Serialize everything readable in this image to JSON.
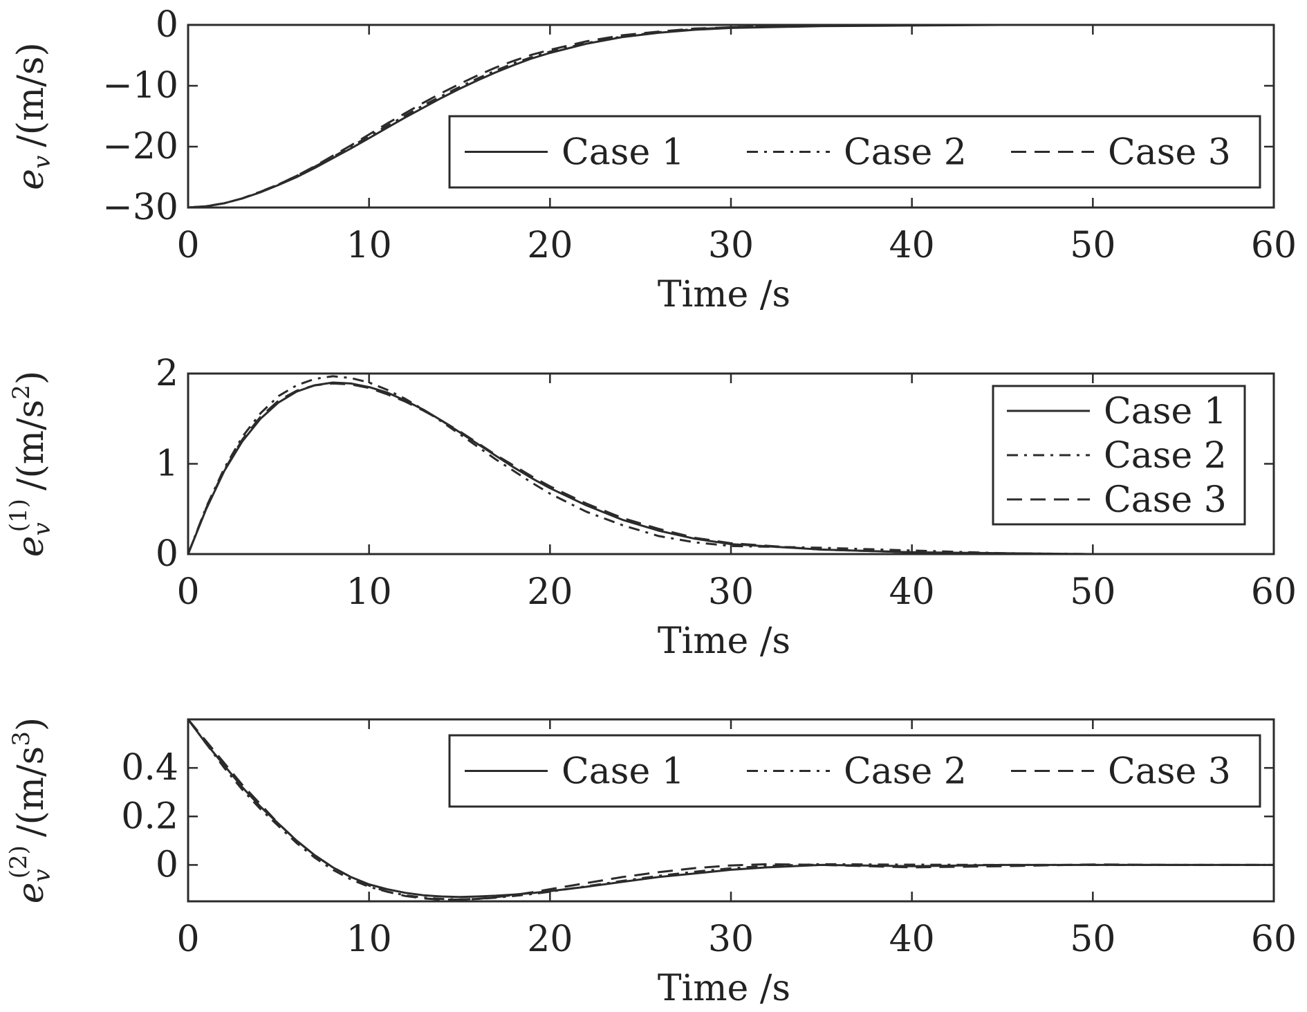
{
  "chart_data": [
    {
      "type": "line",
      "ylabel": {
        "symbol": "e",
        "sub": "v",
        "sup": "",
        "unit": "/(m/s)",
        "unit_sup": ""
      },
      "xlabel": "Time /s",
      "xlim": [
        0,
        60
      ],
      "ylim": [
        -30,
        0
      ],
      "xticks": [
        0,
        10,
        20,
        30,
        40,
        50,
        60
      ],
      "yticks": [
        0,
        -10,
        -20,
        -30
      ],
      "ytick_labels": [
        "0",
        "−10",
        "−20",
        "−30"
      ],
      "legend": {
        "placement": "inside-right-middle",
        "orientation": "horizontal"
      },
      "series": [
        {
          "name": "Case 1",
          "dash": "solid",
          "x": [
            0,
            1,
            2,
            3,
            4,
            5,
            6,
            7,
            8,
            9,
            10,
            11,
            12,
            13,
            14,
            15,
            16,
            17,
            18,
            19,
            20,
            22,
            24,
            26,
            28,
            30,
            35,
            40,
            45,
            50,
            55,
            60
          ],
          "y": [
            -30,
            -29.8,
            -29.3,
            -28.5,
            -27.5,
            -26.3,
            -25,
            -23.5,
            -21.9,
            -20.3,
            -18.6,
            -16.9,
            -15.2,
            -13.6,
            -12,
            -10.5,
            -9.1,
            -7.8,
            -6.6,
            -5.5,
            -4.6,
            -3.1,
            -2,
            -1.3,
            -0.8,
            -0.5,
            -0.2,
            -0.1,
            0,
            0,
            0,
            0
          ]
        },
        {
          "name": "Case 2",
          "dash": "dash-dot",
          "x": [
            0,
            1,
            2,
            3,
            4,
            5,
            6,
            7,
            8,
            9,
            10,
            11,
            12,
            13,
            14,
            15,
            16,
            17,
            18,
            19,
            20,
            22,
            24,
            26,
            28,
            30,
            35,
            40,
            45,
            50,
            55,
            60
          ],
          "y": [
            -30,
            -29.8,
            -29.3,
            -28.5,
            -27.4,
            -26.2,
            -24.8,
            -23.3,
            -21.7,
            -20,
            -18.3,
            -16.6,
            -14.9,
            -13.2,
            -11.7,
            -10.2,
            -8.8,
            -7.5,
            -6.3,
            -5.3,
            -4.4,
            -3,
            -1.9,
            -1.2,
            -0.7,
            -0.4,
            -0.1,
            0,
            0,
            0,
            0,
            0
          ]
        },
        {
          "name": "Case 3",
          "dash": "dashed",
          "x": [
            0,
            1,
            2,
            3,
            4,
            5,
            6,
            7,
            8,
            9,
            10,
            11,
            12,
            13,
            14,
            15,
            16,
            17,
            18,
            19,
            20,
            22,
            24,
            26,
            28,
            30,
            35,
            40,
            45,
            50,
            55,
            60
          ],
          "y": [
            -30,
            -29.8,
            -29.3,
            -28.5,
            -27.4,
            -26.2,
            -24.8,
            -23.2,
            -21.5,
            -19.8,
            -18,
            -16.2,
            -14.5,
            -12.8,
            -11.2,
            -9.7,
            -8.3,
            -7,
            -5.9,
            -4.9,
            -4.1,
            -2.7,
            -1.7,
            -1.1,
            -0.6,
            -0.4,
            -0.1,
            0,
            0,
            0,
            0,
            0
          ]
        }
      ]
    },
    {
      "type": "line",
      "ylabel": {
        "symbol": "e",
        "sub": "v",
        "sup": "(1)",
        "unit": "/(m/s",
        "unit_sup": "2"
      },
      "xlabel": "Time /s",
      "xlim": [
        0,
        60
      ],
      "ylim": [
        0,
        2
      ],
      "xticks": [
        0,
        10,
        20,
        30,
        40,
        50,
        60
      ],
      "yticks": [
        0,
        1,
        2
      ],
      "ytick_labels": [
        "0",
        "1",
        "2"
      ],
      "legend": {
        "placement": "top-right",
        "orientation": "vertical"
      },
      "series": [
        {
          "name": "Case 1",
          "dash": "solid",
          "x": [
            0,
            1,
            2,
            3,
            4,
            5,
            6,
            7,
            8,
            9,
            10,
            11,
            12,
            13,
            14,
            15,
            16,
            17,
            18,
            19,
            20,
            22,
            24,
            26,
            28,
            30,
            35,
            40,
            45,
            50,
            55,
            60
          ],
          "y": [
            0,
            0.5,
            0.92,
            1.25,
            1.5,
            1.68,
            1.8,
            1.87,
            1.9,
            1.89,
            1.85,
            1.79,
            1.7,
            1.6,
            1.48,
            1.35,
            1.22,
            1.09,
            0.96,
            0.84,
            0.73,
            0.54,
            0.38,
            0.26,
            0.17,
            0.11,
            0.05,
            0.02,
            0.01,
            0,
            0,
            0
          ]
        },
        {
          "name": "Case 2",
          "dash": "dash-dot",
          "x": [
            0,
            1,
            2,
            3,
            4,
            5,
            6,
            7,
            8,
            9,
            10,
            11,
            12,
            13,
            14,
            15,
            16,
            17,
            18,
            19,
            20,
            22,
            24,
            26,
            28,
            30,
            35,
            40,
            45,
            50,
            55,
            60
          ],
          "y": [
            0,
            0.52,
            0.95,
            1.3,
            1.56,
            1.75,
            1.87,
            1.94,
            1.97,
            1.95,
            1.9,
            1.82,
            1.72,
            1.6,
            1.47,
            1.33,
            1.19,
            1.05,
            0.92,
            0.79,
            0.67,
            0.47,
            0.32,
            0.2,
            0.13,
            0.09,
            0.07,
            0.04,
            0.01,
            0,
            0,
            0
          ]
        },
        {
          "name": "Case 3",
          "dash": "dashed",
          "x": [
            0,
            1,
            2,
            3,
            4,
            5,
            6,
            7,
            8,
            9,
            10,
            11,
            12,
            13,
            14,
            15,
            16,
            17,
            18,
            19,
            20,
            22,
            24,
            26,
            28,
            30,
            35,
            40,
            45,
            50,
            55,
            60
          ],
          "y": [
            0,
            0.51,
            0.93,
            1.27,
            1.52,
            1.7,
            1.81,
            1.87,
            1.89,
            1.88,
            1.84,
            1.77,
            1.69,
            1.59,
            1.48,
            1.36,
            1.23,
            1.1,
            0.98,
            0.86,
            0.75,
            0.56,
            0.4,
            0.28,
            0.18,
            0.12,
            0.05,
            0.02,
            0,
            0,
            0,
            0
          ]
        }
      ]
    },
    {
      "type": "line",
      "ylabel": {
        "symbol": "e",
        "sub": "v",
        "sup": "(2)",
        "unit": "/(m/s",
        "unit_sup": "3"
      },
      "xlabel": "Time /s",
      "xlim": [
        0,
        60
      ],
      "ylim": [
        -0.15,
        0.6
      ],
      "xticks": [
        0,
        10,
        20,
        30,
        40,
        50,
        60
      ],
      "yticks": [
        0,
        0.2,
        0.4
      ],
      "ytick_labels": [
        "0",
        "0.2",
        "0.4"
      ],
      "legend": {
        "placement": "top-right",
        "orientation": "horizontal"
      },
      "series": [
        {
          "name": "Case 1",
          "dash": "solid",
          "x": [
            0,
            1,
            2,
            3,
            4,
            5,
            6,
            7,
            8,
            9,
            10,
            11,
            12,
            13,
            14,
            15,
            16,
            17,
            18,
            19,
            20,
            22,
            24,
            26,
            28,
            30,
            32,
            35,
            40,
            45,
            50,
            55,
            60
          ],
          "y": [
            0.6,
            0.5,
            0.41,
            0.32,
            0.24,
            0.17,
            0.1,
            0.04,
            -0.01,
            -0.05,
            -0.08,
            -0.1,
            -0.115,
            -0.125,
            -0.13,
            -0.132,
            -0.13,
            -0.127,
            -0.122,
            -0.116,
            -0.108,
            -0.09,
            -0.07,
            -0.05,
            -0.035,
            -0.02,
            -0.01,
            0,
            -0.005,
            0,
            0,
            0,
            0
          ]
        },
        {
          "name": "Case 2",
          "dash": "dash-dot",
          "x": [
            0,
            1,
            2,
            3,
            4,
            5,
            6,
            7,
            8,
            9,
            10,
            11,
            12,
            13,
            14,
            15,
            16,
            17,
            18,
            19,
            20,
            22,
            24,
            26,
            28,
            30,
            32,
            35,
            40,
            45,
            50,
            55,
            60
          ],
          "y": [
            0.6,
            0.5,
            0.4,
            0.31,
            0.23,
            0.16,
            0.09,
            0.03,
            -0.02,
            -0.06,
            -0.09,
            -0.11,
            -0.125,
            -0.135,
            -0.14,
            -0.142,
            -0.14,
            -0.135,
            -0.128,
            -0.12,
            -0.11,
            -0.088,
            -0.066,
            -0.045,
            -0.028,
            -0.014,
            -0.004,
            0.003,
            0.001,
            0,
            0,
            0,
            0
          ]
        },
        {
          "name": "Case 3",
          "dash": "dashed",
          "x": [
            0,
            1,
            2,
            3,
            4,
            5,
            6,
            7,
            8,
            9,
            10,
            11,
            12,
            13,
            14,
            15,
            16,
            17,
            18,
            19,
            20,
            22,
            24,
            26,
            28,
            30,
            32,
            35,
            40,
            45,
            50,
            55,
            60
          ],
          "y": [
            0.6,
            0.51,
            0.42,
            0.33,
            0.25,
            0.17,
            0.1,
            0.04,
            -0.01,
            -0.05,
            -0.085,
            -0.11,
            -0.128,
            -0.138,
            -0.143,
            -0.143,
            -0.14,
            -0.133,
            -0.124,
            -0.113,
            -0.1,
            -0.075,
            -0.05,
            -0.03,
            -0.013,
            -0.002,
            0.003,
            0,
            -0.01,
            -0.005,
            0.002,
            0,
            0
          ]
        }
      ]
    }
  ]
}
